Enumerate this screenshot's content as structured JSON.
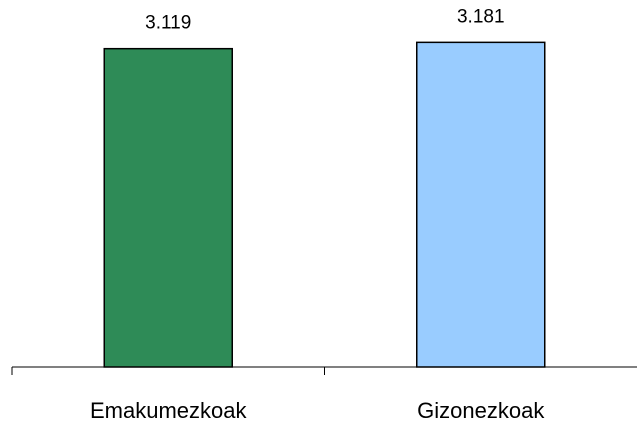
{
  "chart_data": {
    "type": "bar",
    "categories": [
      "Emakumezkoak",
      "Gizonezkoak"
    ],
    "values": [
      3119,
      3181
    ],
    "value_labels": [
      "3.119",
      "3.181"
    ],
    "colors": [
      "#2e8b57",
      "#99ccff"
    ],
    "title": "",
    "xlabel": "",
    "ylabel": "",
    "ylim": [
      0,
      3400
    ],
    "grid": false,
    "legend": "none"
  }
}
